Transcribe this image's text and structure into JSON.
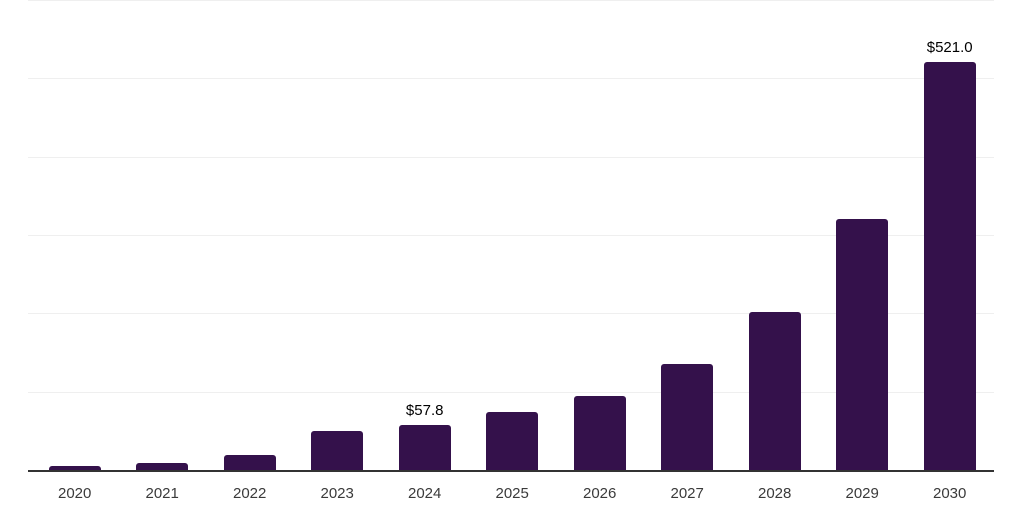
{
  "chart_data": {
    "type": "bar",
    "title": "",
    "xlabel": "",
    "ylabel": "",
    "categories": [
      "2020",
      "2021",
      "2022",
      "2023",
      "2024",
      "2025",
      "2026",
      "2027",
      "2028",
      "2029",
      "2030"
    ],
    "values": [
      4.5,
      9.5,
      19.5,
      50.0,
      57.8,
      74.0,
      95.0,
      135.0,
      202.0,
      320.0,
      521.0
    ],
    "value_labels": {
      "2024": "$57.8",
      "2030": "$521.0"
    },
    "ylim": [
      0,
      600
    ],
    "gridline_interval": 100,
    "grid": true,
    "legend": false,
    "y_tick_labels_visible": false,
    "colors": {
      "bar": "#34114B",
      "gridline": "#EFEFEF",
      "axis_line": "#333333",
      "tick_label": "#3A3A3A",
      "value_label": "#000000",
      "background": "#FFFFFF"
    }
  }
}
